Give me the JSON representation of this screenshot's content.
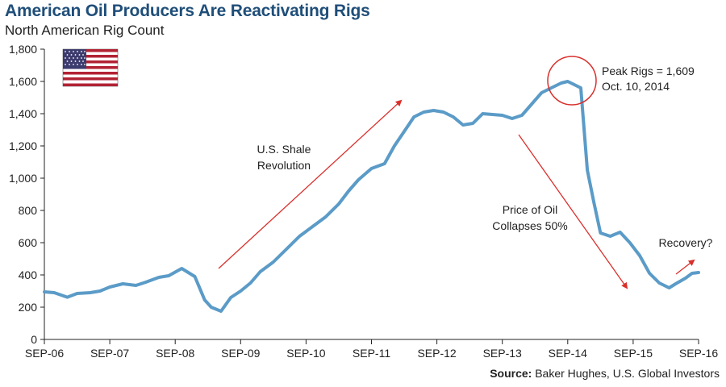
{
  "title": "American Oil Producers Are Reactivating Rigs",
  "subtitle": "North American Rig Count",
  "source": {
    "label": "Source:",
    "text": "Baker Hughes, U.S. Global Investors"
  },
  "colors": {
    "line": "#5b9bc7",
    "arrow": "#d9302c",
    "title": "#1f4e79",
    "axis": "#222222"
  },
  "chart_data": {
    "type": "line",
    "title": "North American Rig Count",
    "xlabel": "",
    "ylabel": "",
    "ylim": [
      0,
      1800
    ],
    "yticks": [
      0,
      200,
      400,
      600,
      800,
      1000,
      1200,
      1400,
      1600,
      1800
    ],
    "ytick_labels": [
      "0",
      "200",
      "400",
      "600",
      "800",
      "1,000",
      "1,200",
      "1,400",
      "1,600",
      "1,800"
    ],
    "xlim": [
      2006.0,
      2016.0
    ],
    "xticks": [
      2006,
      2007,
      2008,
      2009,
      2010,
      2011,
      2012,
      2013,
      2014,
      2015,
      2016
    ],
    "xtick_labels": [
      "SEP-06",
      "SEP-07",
      "SEP-08",
      "SEP-09",
      "SEP-10",
      "SEP-11",
      "SEP-12",
      "SEP-13",
      "SEP-14",
      "SEP-15",
      "SEP-16"
    ],
    "grid": false,
    "series": [
      {
        "name": "North American Rig Count",
        "x": [
          2006.0,
          2006.15,
          2006.35,
          2006.5,
          2006.7,
          2006.85,
          2007.0,
          2007.2,
          2007.4,
          2007.55,
          2007.75,
          2007.9,
          2008.1,
          2008.3,
          2008.45,
          2008.55,
          2008.7,
          2008.85,
          2009.0,
          2009.15,
          2009.3,
          2009.5,
          2009.7,
          2009.9,
          2010.1,
          2010.3,
          2010.5,
          2010.65,
          2010.8,
          2011.0,
          2011.2,
          2011.35,
          2011.5,
          2011.65,
          2011.8,
          2011.95,
          2012.1,
          2012.25,
          2012.4,
          2012.55,
          2012.7,
          2012.85,
          2013.0,
          2013.15,
          2013.3,
          2013.45,
          2013.6,
          2013.75,
          2013.9,
          2014.0,
          2014.1,
          2014.2,
          2014.3,
          2014.4,
          2014.5,
          2014.65,
          2014.8,
          2014.95,
          2015.1,
          2015.25,
          2015.4,
          2015.55,
          2015.65,
          2015.8,
          2015.9,
          2016.0
        ],
        "values": [
          295,
          290,
          262,
          285,
          290,
          300,
          325,
          345,
          335,
          355,
          385,
          395,
          440,
          390,
          245,
          200,
          175,
          260,
          300,
          350,
          420,
          480,
          560,
          640,
          700,
          760,
          840,
          920,
          990,
          1060,
          1090,
          1200,
          1290,
          1380,
          1410,
          1420,
          1410,
          1380,
          1330,
          1340,
          1400,
          1395,
          1390,
          1370,
          1390,
          1460,
          1530,
          1560,
          1590,
          1600,
          1580,
          1560,
          1050,
          850,
          660,
          640,
          665,
          600,
          520,
          410,
          350,
          320,
          345,
          380,
          410,
          415
        ]
      }
    ],
    "annotations": {
      "peak_line1": "Peak Rigs = 1,609",
      "peak_line2": "Oct. 10, 2014",
      "shale_line1": "U.S. Shale",
      "shale_line2": "Revolution",
      "collapse_line1": "Price of Oil",
      "collapse_line2": "Collapses 50%",
      "recovery": "Recovery?"
    }
  }
}
